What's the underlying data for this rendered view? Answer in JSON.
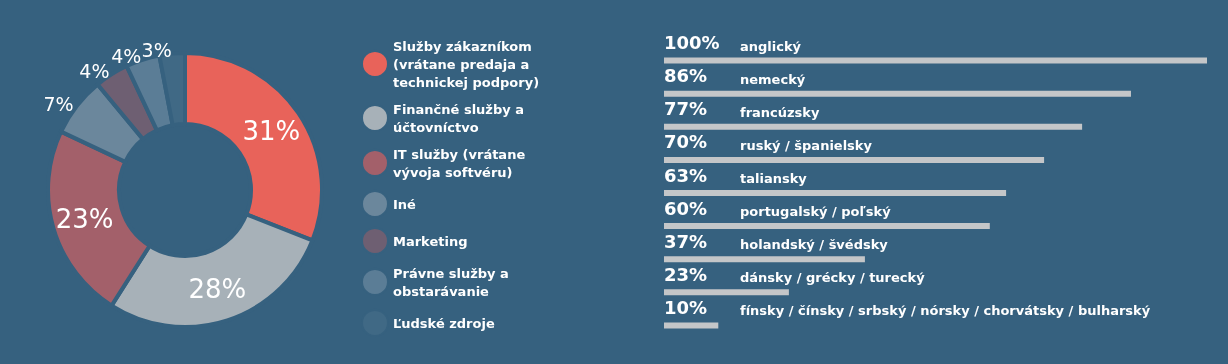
{
  "chart_data": [
    {
      "type": "donut",
      "categories": [
        "Služby zákazníkom (vrátane predaja a technickej podpory)",
        "Finančné služby a účtovníctvo",
        "IT služby (vrátane vývoja softvéru)",
        "Iné",
        "Marketing",
        "Právne služby a obstarávanie",
        "Ľudské zdroje"
      ],
      "values": [
        31,
        28,
        23,
        7,
        4,
        4,
        3
      ],
      "value_labels": [
        "31%",
        "28%",
        "23%",
        "7%",
        "4%",
        "4%",
        "3%"
      ],
      "colors": [
        "#e8635a",
        "#a7b1b8",
        "#a3606a",
        "#6b879c",
        "#6e5f72",
        "#5b7d96",
        "#406985"
      ],
      "legend": "right"
    },
    {
      "type": "bar",
      "orientation": "horizontal",
      "categories": [
        "anglický",
        "nemecký",
        "francúzsky",
        "ruský / španielsky",
        "taliansky",
        "portugalský / poľský",
        "holandský / švédsky",
        "dánsky / grécky / turecký",
        "fínsky / čínsky / srbský / nórsky / chorvátsky / bulharský"
      ],
      "values": [
        100,
        86,
        77,
        70,
        63,
        60,
        37,
        23,
        10
      ],
      "value_labels": [
        "100%",
        "86%",
        "77%",
        "70%",
        "63%",
        "60%",
        "37%",
        "23%",
        "10%"
      ],
      "color": "#c4c6c8"
    }
  ]
}
